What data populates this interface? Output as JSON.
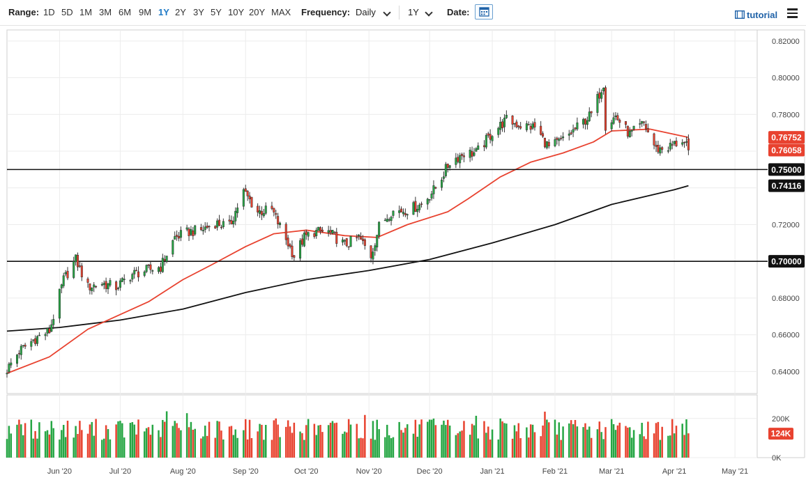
{
  "toolbar": {
    "range_label": "Range:",
    "ranges": [
      "1D",
      "5D",
      "1M",
      "3M",
      "6M",
      "9M",
      "1Y",
      "2Y",
      "3Y",
      "5Y",
      "10Y",
      "20Y",
      "MAX"
    ],
    "active_range": "1Y",
    "frequency_label": "Frequency:",
    "frequency_value": "Daily",
    "period_value": "1Y",
    "date_label": "Date:",
    "tutorial_label": "tutorial",
    "icons": [
      "chevron-down-icon",
      "calendar-icon",
      "film-icon",
      "menu-icon"
    ],
    "accent_color": "#1f7ac6"
  },
  "chart_data": {
    "type": "candlestick",
    "price_axis": {
      "ylim": [
        0.628,
        0.826
      ],
      "ticks": [
        "0.82000",
        "0.80000",
        "0.78000",
        "0.76000",
        "0.74000",
        "0.72000",
        "0.70000",
        "0.68000",
        "0.66000",
        "0.64000"
      ]
    },
    "x_ticks": [
      "Jun '20",
      "Jul '20",
      "Aug '20",
      "Sep '20",
      "Oct '20",
      "Nov '20",
      "Dec '20",
      "Jan '21",
      "Feb '21",
      "Mar '21",
      "Apr '21",
      "May '21"
    ],
    "x_range": [
      "2020-05-06",
      "2021-05-12"
    ],
    "price_anchors": [
      [
        "2020-05-06",
        0.641
      ],
      [
        "2020-05-12",
        0.651
      ],
      [
        "2020-05-20",
        0.658
      ],
      [
        "2020-05-27",
        0.662
      ],
      [
        "2020-06-03",
        0.69
      ],
      [
        "2020-06-09",
        0.701
      ],
      [
        "2020-06-15",
        0.686
      ],
      [
        "2020-06-22",
        0.688
      ],
      [
        "2020-06-29",
        0.686
      ],
      [
        "2020-07-07",
        0.693
      ],
      [
        "2020-07-14",
        0.695
      ],
      [
        "2020-07-21",
        0.697
      ],
      [
        "2020-07-28",
        0.713
      ],
      [
        "2020-08-04",
        0.716
      ],
      [
        "2020-08-10",
        0.717
      ],
      [
        "2020-08-17",
        0.721
      ],
      [
        "2020-08-24",
        0.719
      ],
      [
        "2020-08-31",
        0.738
      ],
      [
        "2020-09-07",
        0.727
      ],
      [
        "2020-09-14",
        0.728
      ],
      [
        "2020-09-21",
        0.712
      ],
      [
        "2020-09-25",
        0.703
      ],
      [
        "2020-09-30",
        0.713
      ],
      [
        "2020-10-05",
        0.716
      ],
      [
        "2020-10-12",
        0.716
      ],
      [
        "2020-10-20",
        0.709
      ],
      [
        "2020-10-27",
        0.713
      ],
      [
        "2020-11-02",
        0.703
      ],
      [
        "2020-11-06",
        0.719
      ],
      [
        "2020-11-12",
        0.727
      ],
      [
        "2020-11-20",
        0.728
      ],
      [
        "2020-11-27",
        0.731
      ],
      [
        "2020-12-04",
        0.74
      ],
      [
        "2020-12-11",
        0.754
      ],
      [
        "2020-12-18",
        0.759
      ],
      [
        "2020-12-24",
        0.759
      ],
      [
        "2021-01-01",
        0.77
      ],
      [
        "2021-01-08",
        0.777
      ],
      [
        "2021-01-15",
        0.774
      ],
      [
        "2021-01-22",
        0.773
      ],
      [
        "2021-01-29",
        0.762
      ],
      [
        "2021-02-05",
        0.766
      ],
      [
        "2021-02-12",
        0.773
      ],
      [
        "2021-02-19",
        0.78
      ],
      [
        "2021-02-25",
        0.797
      ],
      [
        "2021-02-26",
        0.774
      ],
      [
        "2021-03-03",
        0.779
      ],
      [
        "2021-03-10",
        0.769
      ],
      [
        "2021-03-17",
        0.775
      ],
      [
        "2021-03-23",
        0.761
      ],
      [
        "2021-03-29",
        0.762
      ],
      [
        "2021-04-05",
        0.766
      ],
      [
        "2021-04-08",
        0.7606
      ]
    ],
    "sma_fast": {
      "color": "#e8422f",
      "points": [
        [
          "2020-05-06",
          0.639
        ],
        [
          "2020-05-27",
          0.648
        ],
        [
          "2020-06-15",
          0.663
        ],
        [
          "2020-07-01",
          0.671
        ],
        [
          "2020-07-15",
          0.678
        ],
        [
          "2020-08-01",
          0.69
        ],
        [
          "2020-08-15",
          0.698
        ],
        [
          "2020-09-01",
          0.708
        ],
        [
          "2020-09-15",
          0.715
        ],
        [
          "2020-10-01",
          0.717
        ],
        [
          "2020-10-20",
          0.714
        ],
        [
          "2020-11-05",
          0.713
        ],
        [
          "2020-11-20",
          0.72
        ],
        [
          "2020-12-10",
          0.727
        ],
        [
          "2020-12-20",
          0.734
        ],
        [
          "2021-01-05",
          0.746
        ],
        [
          "2021-01-20",
          0.754
        ],
        [
          "2021-02-05",
          0.759
        ],
        [
          "2021-02-20",
          0.765
        ],
        [
          "2021-03-01",
          0.771
        ],
        [
          "2021-03-20",
          0.772
        ],
        [
          "2021-04-08",
          0.7675
        ]
      ]
    },
    "sma_slow": {
      "color": "#111111",
      "points": [
        [
          "2020-05-06",
          0.662
        ],
        [
          "2020-06-01",
          0.664
        ],
        [
          "2020-07-01",
          0.668
        ],
        [
          "2020-08-01",
          0.674
        ],
        [
          "2020-09-01",
          0.683
        ],
        [
          "2020-10-01",
          0.69
        ],
        [
          "2020-11-01",
          0.695
        ],
        [
          "2020-12-01",
          0.701
        ],
        [
          "2021-01-01",
          0.71
        ],
        [
          "2021-02-01",
          0.72
        ],
        [
          "2021-03-01",
          0.731
        ],
        [
          "2021-04-01",
          0.739
        ],
        [
          "2021-04-08",
          0.7412
        ]
      ]
    },
    "horizontal_lines": [
      {
        "value": 0.75,
        "label": "0.75000"
      },
      {
        "value": 0.7,
        "label": "0.70000"
      }
    ],
    "price_labels": [
      {
        "value": 0.76752,
        "label": "0.76752",
        "color": "#e8422f"
      },
      {
        "value": 0.76058,
        "label": "0.76058",
        "color": "#e8422f"
      },
      {
        "value": 0.75,
        "label": "0.75000",
        "color": "#111111"
      },
      {
        "value": 0.74116,
        "label": "0.74116",
        "color": "#111111"
      },
      {
        "value": 0.7,
        "label": "0.70000",
        "color": "#111111"
      }
    ],
    "volume_axis": {
      "ylim": [
        0,
        320000
      ],
      "ticks": [
        "200K",
        "0K"
      ],
      "latest_label": "124K",
      "latest_color": "#e8422f"
    },
    "up_color": "#26a644",
    "down_color": "#e8422f",
    "grid": true
  }
}
